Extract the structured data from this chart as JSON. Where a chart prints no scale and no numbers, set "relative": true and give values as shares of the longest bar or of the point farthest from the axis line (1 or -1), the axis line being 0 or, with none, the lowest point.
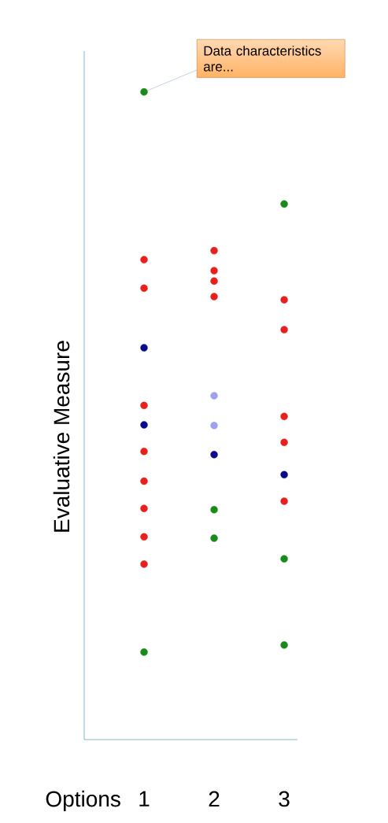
{
  "chart_data": {
    "type": "scatter",
    "relative": true,
    "xlabel": "Options",
    "ylabel": "Evaluative Measure",
    "categories": [
      "1",
      "2",
      "3"
    ],
    "marker": "circle",
    "series": [
      {
        "color": "#e8201c",
        "x": [
          "1",
          "1",
          "1",
          "1",
          "1",
          "1",
          "1",
          "1",
          "2",
          "2",
          "2",
          "2",
          "3",
          "3",
          "3",
          "3",
          "3"
        ],
        "values": [
          0.741,
          0.697,
          0.516,
          0.445,
          0.399,
          0.357,
          0.313,
          0.271,
          0.755,
          0.724,
          0.708,
          0.684,
          0.679,
          0.633,
          0.499,
          0.459,
          0.368
        ]
      },
      {
        "color": "#0a0a8c",
        "x": [
          "1",
          "1",
          "2",
          "3"
        ],
        "values": [
          0.605,
          0.486,
          0.44,
          0.409
        ]
      },
      {
        "color": "#a0a0ee",
        "x": [
          "2",
          "2"
        ],
        "values": [
          0.531,
          0.485
        ]
      },
      {
        "color": "#1a8a1a",
        "x": [
          "1",
          "1",
          "2",
          "2",
          "3",
          "3",
          "3"
        ],
        "values": [
          1.0,
          0.135,
          0.355,
          0.311,
          0.827,
          0.279,
          0.146
        ]
      }
    ],
    "annotations": [
      {
        "text": "Data characteristics are...",
        "x": "1",
        "y": 1.0
      }
    ]
  }
}
